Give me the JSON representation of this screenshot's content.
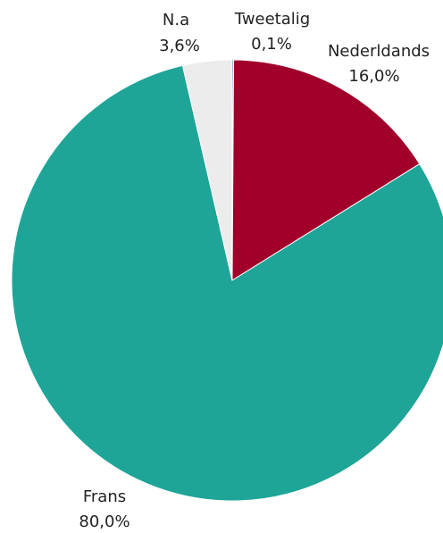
{
  "chart_data": {
    "type": "pie",
    "slices": [
      {
        "label": "Tweetalig",
        "value": 0.1,
        "value_label": "0,1%",
        "color": "#3a63a8"
      },
      {
        "label": "Nederldands",
        "value": 16.0,
        "value_label": "16,0%",
        "color": "#a0002a"
      },
      {
        "label": "Frans",
        "value": 80.0,
        "value_label": "80,0%",
        "color": "#1ea597"
      },
      {
        "label": "N.a",
        "value": 3.6,
        "value_label": "3,6%",
        "color": "#ececec"
      }
    ],
    "start": "12 o'clock",
    "direction": "clockwise",
    "legend": "none"
  }
}
